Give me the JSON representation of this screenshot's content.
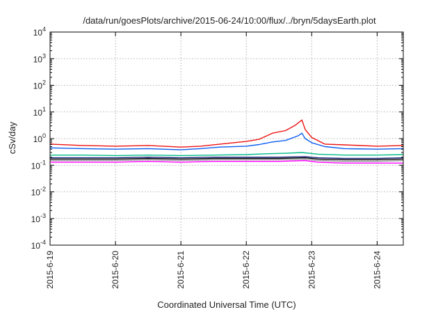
{
  "chart_data": {
    "type": "line",
    "title": "/data/run/goesPlots/archive/2015-06-24/10:00/flux/../bryn/5daysEarth.plot",
    "xlabel": "Coordinated Universal Time (UTC)",
    "ylabel": "cSv/day",
    "yscale": "log",
    "ylim": [
      0.0001,
      10000
    ],
    "xlim": [
      0,
      5.4
    ],
    "x_unit": "days since 2015-6-19 00:00 UTC",
    "grid": true,
    "legend": "none",
    "x_ticks": [
      {
        "value": 0,
        "label": "2015-6-19"
      },
      {
        "value": 1,
        "label": "2015-6-20"
      },
      {
        "value": 2,
        "label": "2015-6-21"
      },
      {
        "value": 3,
        "label": "2015-6-22"
      },
      {
        "value": 4,
        "label": "2015-6-23"
      },
      {
        "value": 5,
        "label": "2015-6-24"
      }
    ],
    "y_ticks": [
      {
        "value": 0.0001,
        "base": "10",
        "exp": "-4"
      },
      {
        "value": 0.001,
        "base": "10",
        "exp": "-3"
      },
      {
        "value": 0.01,
        "base": "10",
        "exp": "-2"
      },
      {
        "value": 0.1,
        "base": "10",
        "exp": "-1"
      },
      {
        "value": 1,
        "base": "10",
        "exp": "0"
      },
      {
        "value": 10,
        "base": "10",
        "exp": "1"
      },
      {
        "value": 100,
        "base": "10",
        "exp": "2"
      },
      {
        "value": 1000,
        "base": "10",
        "exp": "3"
      },
      {
        "value": 10000,
        "base": "10",
        "exp": "4"
      }
    ],
    "series": [
      {
        "color": "#ff00ff",
        "x": [
          0,
          0.5,
          1,
          1.5,
          2,
          2.5,
          3,
          3.5,
          3.9,
          4.1,
          4.5,
          5,
          5.4
        ],
        "y": [
          0.13,
          0.13,
          0.13,
          0.14,
          0.13,
          0.14,
          0.14,
          0.14,
          0.15,
          0.13,
          0.12,
          0.12,
          0.12
        ]
      },
      {
        "color": "#999999",
        "x": [
          0,
          0.5,
          1,
          1.5,
          2,
          2.5,
          3,
          3.5,
          3.9,
          4.1,
          4.5,
          5,
          5.4
        ],
        "y": [
          0.15,
          0.15,
          0.15,
          0.16,
          0.15,
          0.16,
          0.16,
          0.16,
          0.17,
          0.15,
          0.14,
          0.14,
          0.15
        ]
      },
      {
        "color": "#000000",
        "x": [
          0,
          0.5,
          1,
          1.5,
          2,
          2.5,
          3,
          3.5,
          3.9,
          4.1,
          4.5,
          5,
          5.4
        ],
        "y": [
          0.17,
          0.17,
          0.17,
          0.18,
          0.17,
          0.18,
          0.18,
          0.18,
          0.19,
          0.17,
          0.16,
          0.16,
          0.17
        ]
      },
      {
        "color": "#1a237e",
        "x": [
          0,
          0.5,
          1,
          1.5,
          2,
          2.5,
          3,
          3.5,
          3.9,
          4.1,
          4.5,
          5,
          5.4
        ],
        "y": [
          0.19,
          0.19,
          0.19,
          0.2,
          0.19,
          0.2,
          0.2,
          0.2,
          0.21,
          0.19,
          0.18,
          0.18,
          0.19
        ]
      },
      {
        "color": "#00bb88",
        "x": [
          0,
          0.5,
          1,
          1.5,
          2,
          2.5,
          3,
          3.3,
          3.6,
          3.85,
          4.1,
          4.5,
          5,
          5.4
        ],
        "y": [
          0.24,
          0.24,
          0.23,
          0.24,
          0.23,
          0.24,
          0.25,
          0.27,
          0.28,
          0.3,
          0.26,
          0.24,
          0.24,
          0.25
        ]
      },
      {
        "color": "#0a5cf0",
        "x": [
          0,
          0.5,
          1,
          1.5,
          2,
          2.3,
          2.6,
          3,
          3.2,
          3.4,
          3.6,
          3.8,
          3.85,
          3.9,
          4.0,
          4.2,
          4.5,
          5,
          5.4
        ],
        "y": [
          0.45,
          0.42,
          0.4,
          0.42,
          0.38,
          0.42,
          0.48,
          0.52,
          0.6,
          0.75,
          0.85,
          1.3,
          1.6,
          1.0,
          0.7,
          0.5,
          0.42,
          0.4,
          0.42
        ]
      },
      {
        "color": "#ee1111",
        "x": [
          0,
          0.5,
          1,
          1.5,
          2,
          2.3,
          2.6,
          3,
          3.2,
          3.4,
          3.6,
          3.75,
          3.85,
          3.9,
          4.0,
          4.2,
          4.5,
          5,
          5.4
        ],
        "y": [
          0.62,
          0.55,
          0.52,
          0.55,
          0.48,
          0.52,
          0.62,
          0.78,
          0.95,
          1.6,
          2.0,
          3.2,
          5.0,
          2.2,
          1.1,
          0.62,
          0.58,
          0.52,
          0.55
        ]
      }
    ]
  }
}
